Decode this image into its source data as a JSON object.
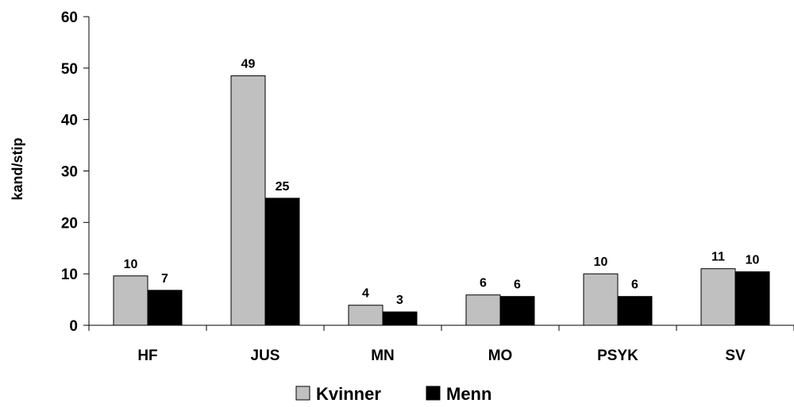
{
  "chart_data": {
    "type": "bar",
    "title": "",
    "xlabel": "",
    "ylabel": "kand/stip",
    "ylim": [
      0,
      60
    ],
    "yticks": [
      0,
      10,
      20,
      30,
      40,
      50,
      60
    ],
    "grid": false,
    "legend_position": "bottom",
    "categories": [
      "HF",
      "JUS",
      "MN",
      "MO",
      "PSYK",
      "SV"
    ],
    "series": [
      {
        "name": "Kvinner",
        "color": "#c0c0c0",
        "values": [
          9.6,
          48.5,
          3.9,
          5.9,
          10.0,
          11.0
        ],
        "labels": [
          "10",
          "49",
          "4",
          "6",
          "10",
          "11"
        ]
      },
      {
        "name": "Menn",
        "color": "#000000",
        "values": [
          6.8,
          24.7,
          2.6,
          5.6,
          5.6,
          10.4
        ],
        "labels": [
          "7",
          "25",
          "3",
          "6",
          "6",
          "10"
        ]
      }
    ]
  }
}
